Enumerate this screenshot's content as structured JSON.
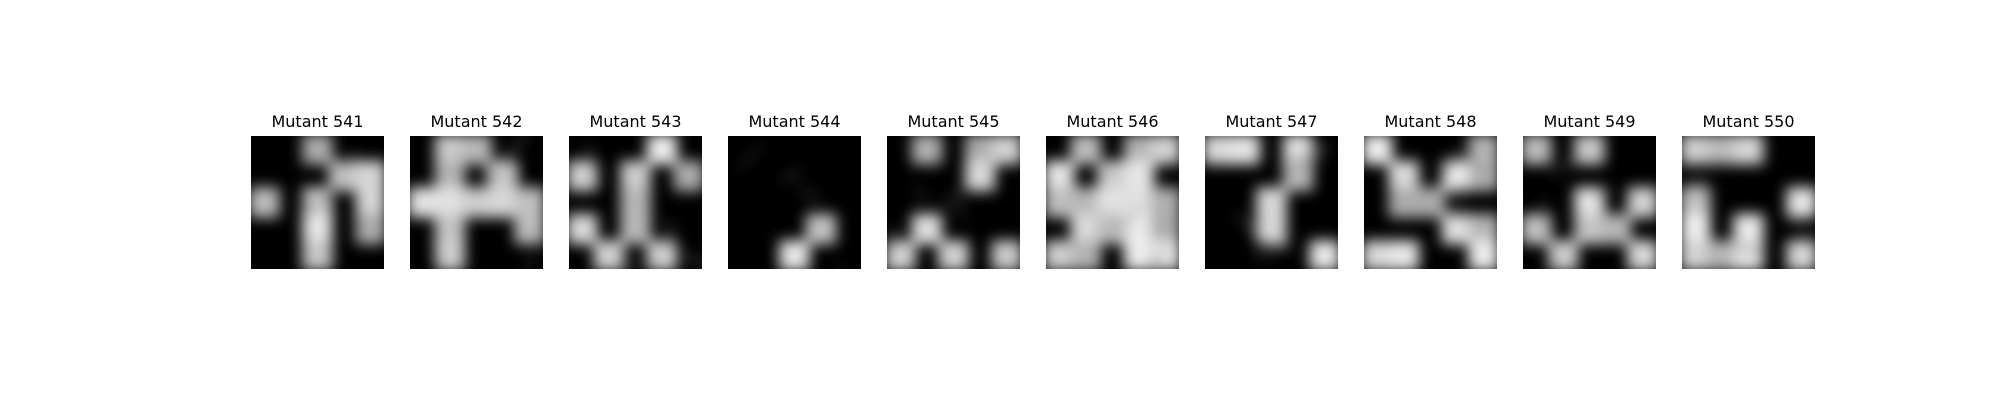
{
  "figure": {
    "panels": [
      {
        "title": "Mutant 541",
        "seed": 541,
        "coverage": 0.45
      },
      {
        "title": "Mutant 542",
        "seed": 542,
        "coverage": 0.4
      },
      {
        "title": "Mutant 543",
        "seed": 543,
        "coverage": 0.35
      },
      {
        "title": "Mutant 544",
        "seed": 544,
        "coverage": 0.28
      },
      {
        "title": "Mutant 545",
        "seed": 545,
        "coverage": 0.5
      },
      {
        "title": "Mutant 546",
        "seed": 546,
        "coverage": 0.65
      },
      {
        "title": "Mutant 547",
        "seed": 547,
        "coverage": 0.55
      },
      {
        "title": "Mutant 548",
        "seed": 548,
        "coverage": 0.5
      },
      {
        "title": "Mutant 549",
        "seed": 549,
        "coverage": 0.48
      },
      {
        "title": "Mutant 550",
        "seed": 550,
        "coverage": 0.45
      }
    ],
    "colors": {
      "background": "#ffffff",
      "mask_dark": "#000000",
      "mask_light": "#d8d8d8",
      "title_text": "#000000"
    }
  }
}
